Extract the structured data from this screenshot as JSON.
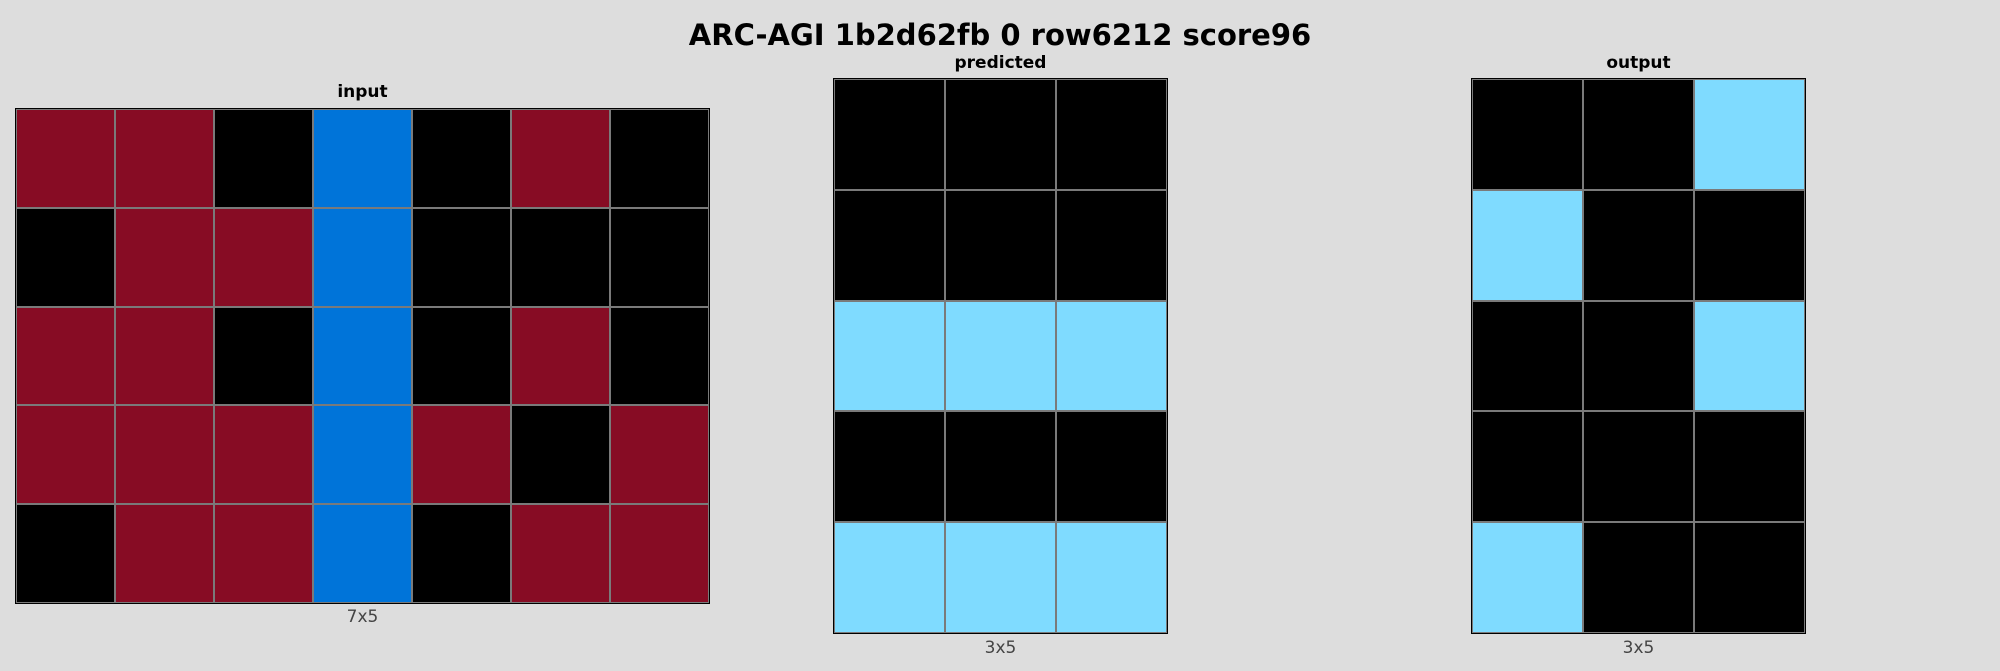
{
  "title": "ARC-AGI 1b2d62fb 0 row6212 score96",
  "palette": {
    "0": "#000000",
    "1": "#0074d9",
    "2": "#870c24",
    "8": "#7fdbff"
  },
  "panels": {
    "input": {
      "title": "input",
      "caption": "7x5",
      "grid": [
        [
          2,
          2,
          0,
          1,
          0,
          2,
          0
        ],
        [
          0,
          2,
          2,
          1,
          0,
          0,
          0
        ],
        [
          2,
          2,
          0,
          1,
          0,
          2,
          0
        ],
        [
          2,
          2,
          2,
          1,
          2,
          0,
          2
        ],
        [
          0,
          2,
          2,
          1,
          0,
          2,
          2
        ]
      ]
    },
    "predicted": {
      "title": "predicted",
      "caption": "3x5",
      "grid": [
        [
          0,
          0,
          0
        ],
        [
          0,
          0,
          0
        ],
        [
          8,
          8,
          8
        ],
        [
          0,
          0,
          0
        ],
        [
          8,
          8,
          8
        ]
      ]
    },
    "output": {
      "title": "output",
      "caption": "3x5",
      "grid": [
        [
          0,
          0,
          8
        ],
        [
          8,
          0,
          0
        ],
        [
          0,
          0,
          8
        ],
        [
          0,
          0,
          0
        ],
        [
          8,
          0,
          0
        ]
      ]
    }
  }
}
